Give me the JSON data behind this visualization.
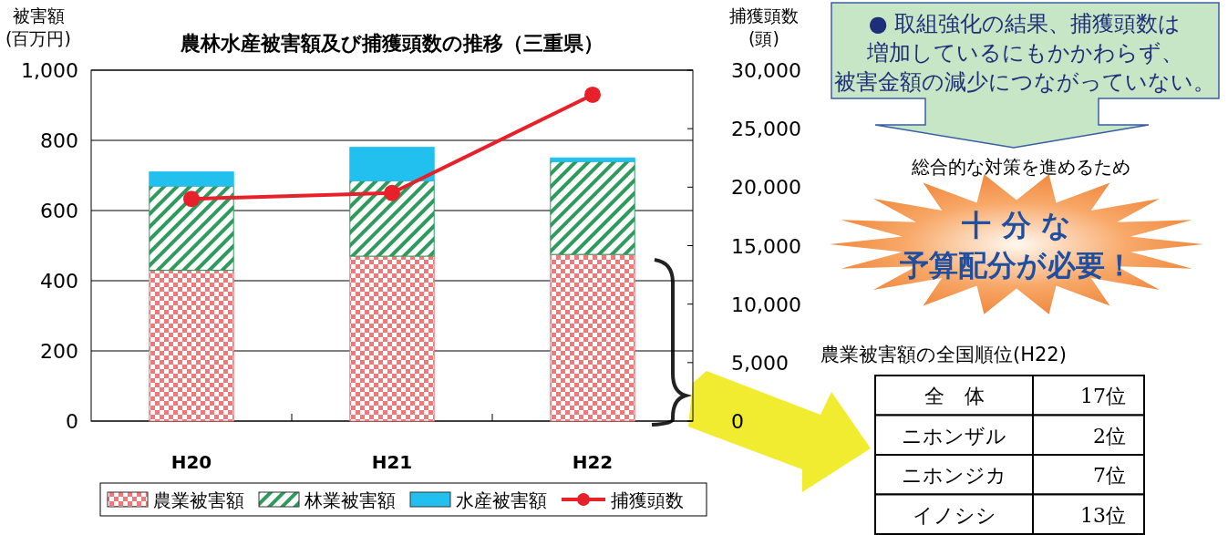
{
  "chart_data": {
    "type": "bar",
    "title": "農林水産被害額及び捕獲頭数の推移（三重県）",
    "ylabel": "被害額\n(百万円)",
    "y2label": "捕獲頭数\n(頭)",
    "categories": [
      "H20",
      "H21",
      "H22"
    ],
    "stacked": true,
    "series": [
      {
        "name": "農業被害額",
        "color": "#f07878",
        "values": [
          430,
          470,
          475
        ]
      },
      {
        "name": "林業被害額",
        "color": "#2e9a5c",
        "values": [
          240,
          215,
          265
        ]
      },
      {
        "name": "水産被害額",
        "color": "#22c0ee",
        "values": [
          40,
          95,
          10
        ]
      },
      {
        "name": "捕獲頭数",
        "type": "line",
        "axis": "y2",
        "color": "#e8202a",
        "marker": "circle",
        "values": [
          19000,
          19500,
          27900
        ]
      }
    ],
    "ylim": [
      0,
      1000
    ],
    "yticks": [
      0,
      200,
      400,
      600,
      800,
      {
        "value": 1000,
        "label": "1,000"
      }
    ],
    "y2lim": [
      0,
      30000
    ],
    "y2ticks": [
      0,
      {
        "value": 5000,
        "label": "5,000"
      },
      {
        "value": 10000,
        "label": "10,000"
      },
      {
        "value": 15000,
        "label": "15,000"
      },
      {
        "value": 20000,
        "label": "20,000"
      },
      {
        "value": 25000,
        "label": "25,000"
      },
      {
        "value": 30000,
        "label": "30,000"
      }
    ],
    "grid": "y",
    "legend": "bottom",
    "annotations": [
      "● 取組強化の結果、捕獲頭数は",
      "増加しているにもかかわらず、",
      "被害金額の減少につながっていない。",
      "総合的な対策を進めるため",
      "十 分 な",
      "予算配分が必要！",
      "農業被害額の全国順位(H22)",
      "全　体",
      "17位",
      "ニホンザル",
      "2位",
      "ニホンジカ",
      "7位",
      "イノシシ",
      "13位"
    ]
  }
}
